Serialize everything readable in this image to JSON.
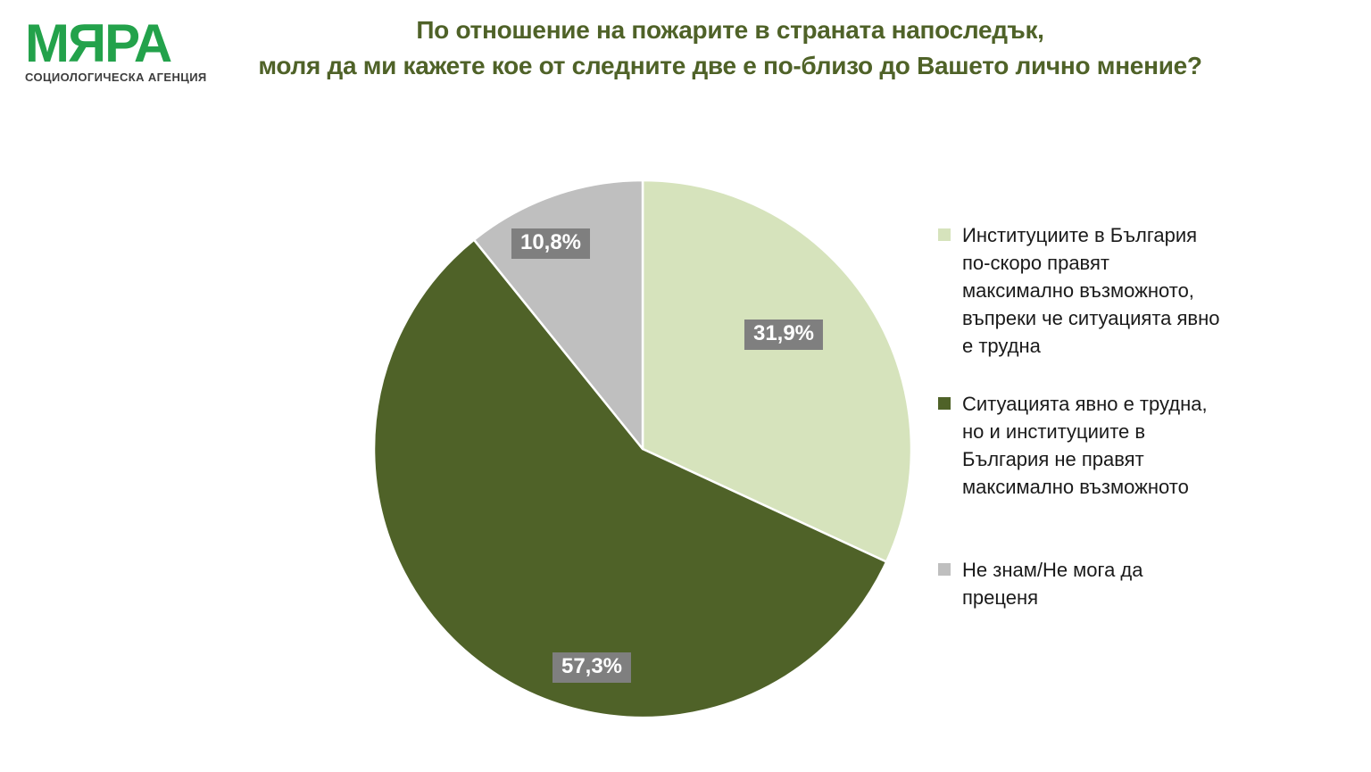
{
  "logo": {
    "name": "МЯРА",
    "tagline": "СОЦИОЛОГИЧЕСКА АГЕНЦИЯ",
    "brand_color": "#23a24b"
  },
  "title": {
    "text": "По отношение на пожарите в страната напоследък,\nмоля да ми кажете кое от следните две е по-близо до Вашето лично мнение?",
    "color": "#4f6228"
  },
  "chart_data": {
    "type": "pie",
    "title": "По отношение на пожарите в страната напоследък, моля да ми кажете кое от следните две е по-близо до Вашето лично мнение?",
    "categories": [
      "Институциите в България\nпо-скоро правят\nмаксимално възможното,\nвъпреки че ситуацията явно\nе трудна",
      "Ситуацията явно е трудна,\nно и институциите в\nБългария не правят\nмаксимално възможното",
      "Не знам/Не мога да\nпреценя"
    ],
    "values": [
      31.9,
      57.3,
      10.8
    ],
    "point_labels": [
      "31,9%",
      "57,3%",
      "10,8%"
    ],
    "colors": [
      "#d6e3bc",
      "#4f6228",
      "#bfbfbf"
    ],
    "start_angle_deg": 0,
    "direction": "clockwise",
    "legend_position": "right",
    "slice_border_color": "#ffffff",
    "data_label_style": {
      "background": "#7f7f7f",
      "text_color": "#ffffff"
    },
    "label_hints": [
      {
        "angle_deg": 51,
        "radius_frac": 0.675
      },
      {
        "angle_deg": 193,
        "radius_frac": 0.835
      },
      {
        "angle_deg": 336,
        "radius_frac": 0.838
      }
    ]
  }
}
